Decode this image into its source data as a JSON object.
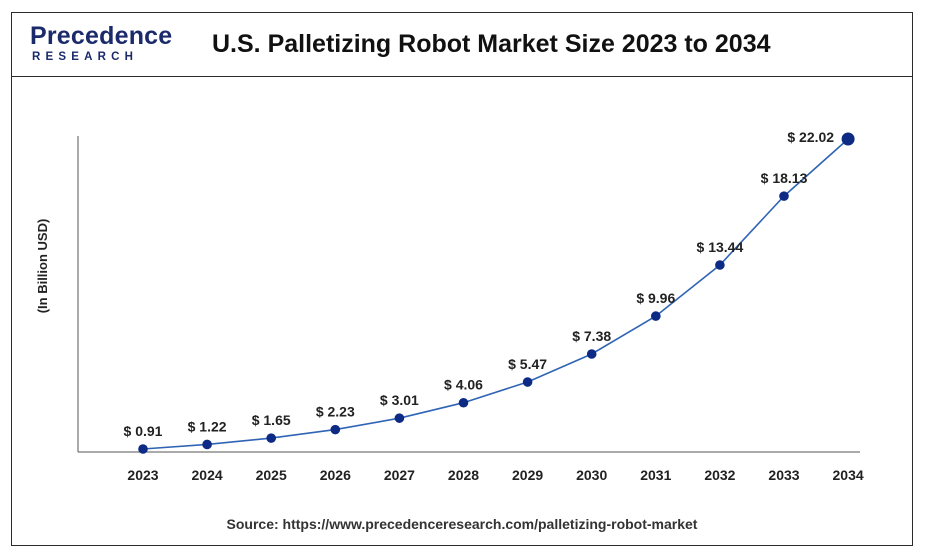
{
  "header": {
    "logo_main": "Precedence",
    "logo_sub": "RESEARCH",
    "title": "U.S. Palletizing Robot Market Size 2023 to 2034"
  },
  "source": "Source: https://www.precedenceresearch.com/palletizing-robot-market",
  "colors": {
    "line": "#2f64b5",
    "marker": "#0d2a85",
    "brand": "#1b2a6b",
    "axis": "#555555"
  },
  "chart_data": {
    "type": "line",
    "title": "U.S. Palletizing Robot Market Size 2023 to 2034",
    "xlabel": "",
    "ylabel": "(In Billion USD)",
    "categories": [
      "2023",
      "2024",
      "2025",
      "2026",
      "2027",
      "2028",
      "2029",
      "2030",
      "2031",
      "2032",
      "2033",
      "2034"
    ],
    "series": [
      {
        "values": [
          0.91,
          1.22,
          1.65,
          2.23,
          3.01,
          4.06,
          5.47,
          7.38,
          9.96,
          13.44,
          18.13,
          22.02
        ],
        "labels": [
          "$ 0.91",
          "$ 1.22",
          "$ 1.65",
          "$ 2.23",
          "$ 3.01",
          "$ 4.06",
          "$ 5.47",
          "$ 7.38",
          "$ 9.96",
          "$ 13.44",
          "$ 18.13",
          "$ 22.02"
        ]
      }
    ],
    "ylim": [
      0,
      23
    ],
    "grid": false,
    "legend": "none"
  }
}
